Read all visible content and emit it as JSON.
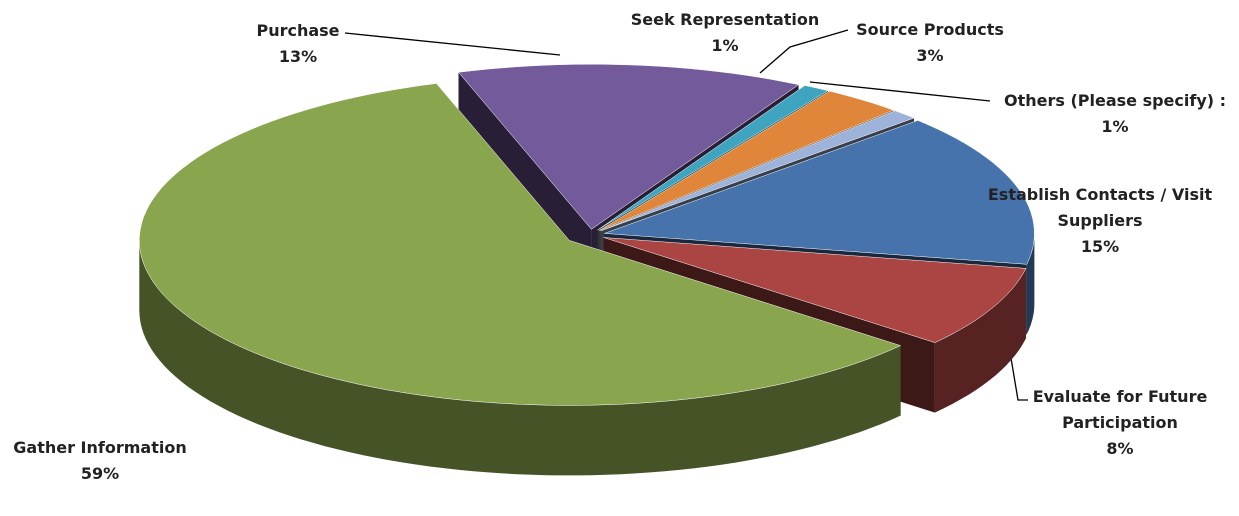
{
  "chart_data": {
    "type": "pie3d",
    "categories": [
      "Purchase",
      "Seek Representation",
      "Source Products",
      "Others (Please specify) :",
      "Establish Contacts / Visit Suppliers",
      "Evaluate for Future Participation",
      "Gather Information"
    ],
    "values": [
      13,
      1,
      3,
      1,
      15,
      8,
      59
    ],
    "value_labels": [
      "13%",
      "1%",
      "3%",
      "1%",
      "15%",
      "8%",
      "59%"
    ],
    "colors": [
      "#735a9b",
      "#3fa4bf",
      "#e0863a",
      "#9db3d9",
      "#4673ab",
      "#ab4543",
      "#89a54e"
    ]
  }
}
